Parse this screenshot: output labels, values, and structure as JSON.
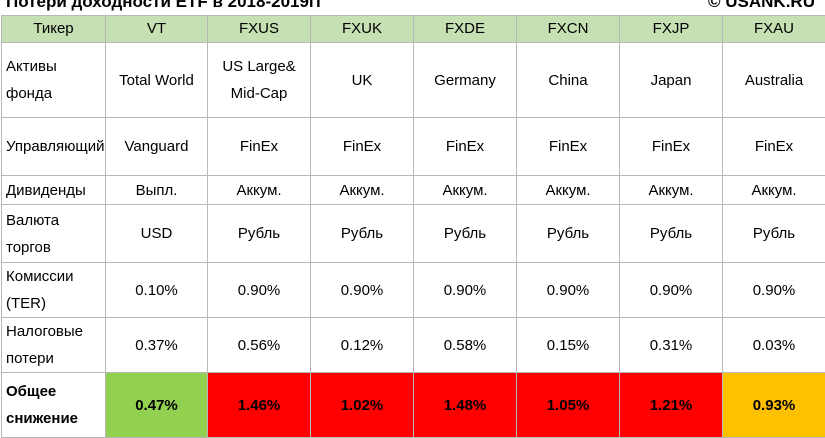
{
  "title": "Потери доходности ETF в 2018-2019гг",
  "watermark": "© USANK.RU",
  "table": {
    "headers": [
      "Тикер",
      "VT",
      "FXUS",
      "FXUK",
      "FXDE",
      "FXCN",
      "FXJP",
      "FXAU"
    ],
    "rows": [
      {
        "label": "Активы фонда",
        "cells": [
          "Total World",
          "US Large& Mid-Cap",
          "UK",
          "Germany",
          "China",
          "Japan",
          "Australia"
        ]
      },
      {
        "label": "Управляющий",
        "cells": [
          "Vanguard",
          "FinEx",
          "FinEx",
          "FinEx",
          "FinEx",
          "FinEx",
          "FinEx"
        ]
      },
      {
        "label": "Дивиденды",
        "cells": [
          "Выпл.",
          "Аккум.",
          "Аккум.",
          "Аккум.",
          "Аккум.",
          "Аккум.",
          "Аккум."
        ]
      },
      {
        "label": "Валюта торгов",
        "cells": [
          "USD",
          "Рубль",
          "Рубль",
          "Рубль",
          "Рубль",
          "Рубль",
          "Рубль"
        ]
      },
      {
        "label": "Комиссии (TER)",
        "cells": [
          "0.10%",
          "0.90%",
          "0.90%",
          "0.90%",
          "0.90%",
          "0.90%",
          "0.90%"
        ]
      },
      {
        "label": "Налоговые потери",
        "cells": [
          "0.37%",
          "0.56%",
          "0.12%",
          "0.58%",
          "0.15%",
          "0.31%",
          "0.03%"
        ]
      },
      {
        "label": "Общее снижение",
        "cells": [
          "0.47%",
          "1.46%",
          "1.02%",
          "1.48%",
          "1.05%",
          "1.21%",
          "0.93%"
        ]
      }
    ]
  },
  "colors": {
    "header_bg": "#c6e0b4",
    "good": "#92d050",
    "bad": "#ff0000",
    "medium": "#ffc000"
  }
}
